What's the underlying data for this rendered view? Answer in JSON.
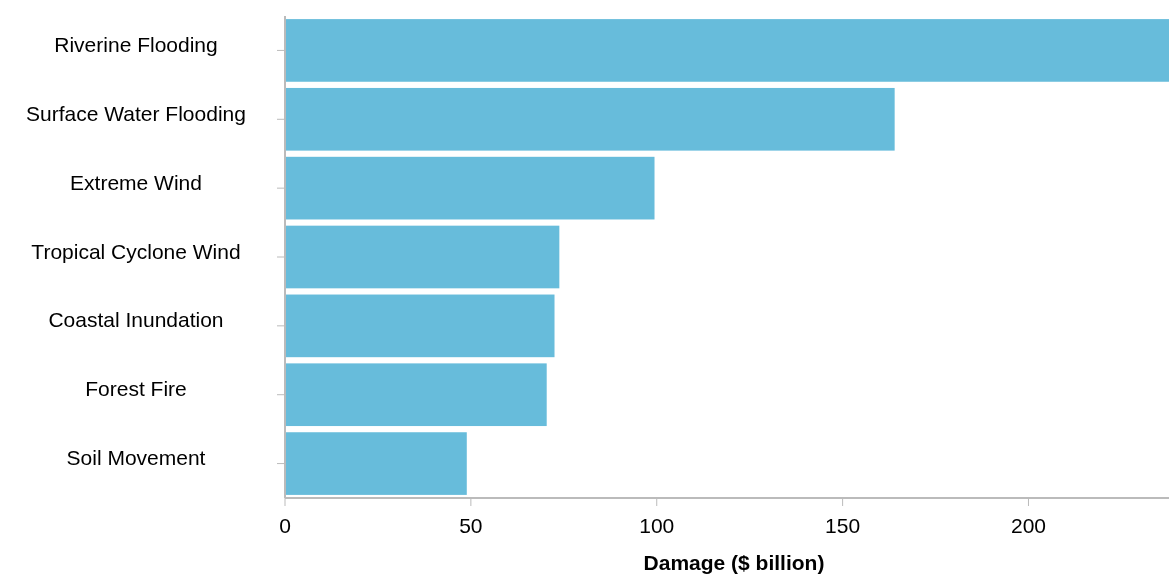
{
  "chart_data": {
    "type": "bar",
    "orientation": "horizontal",
    "xlabel": "Damage ($ billion)",
    "categories": [
      "Riverine Flooding",
      "Surface Water Flooding",
      "Extreme Wind",
      "Tropical Cyclone Wind",
      "Coastal Inundation",
      "Forest Fire",
      "Soil Movement"
    ],
    "values": [
      237.8,
      164,
      99.4,
      73.8,
      72.5,
      70.4,
      48.9
    ],
    "color": "#67bcdb",
    "xlim": [
      0,
      237.8
    ],
    "xticks": [
      0,
      50,
      100,
      150,
      200
    ],
    "grid": false
  }
}
